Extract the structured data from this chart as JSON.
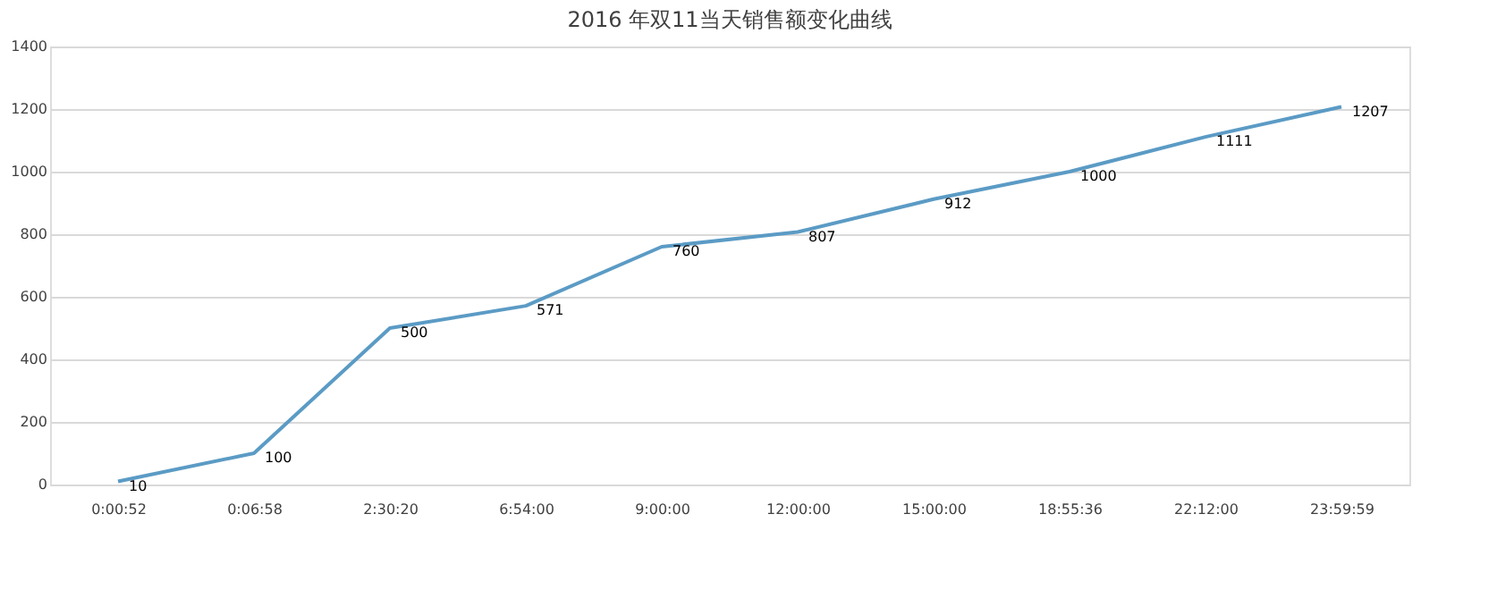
{
  "chart_data": {
    "type": "line",
    "title": "2016 年双11当天销售额变化曲线",
    "categories": [
      "0:00:52",
      "0:06:58",
      "2:30:20",
      "6:54:00",
      "9:00:00",
      "12:00:00",
      "15:00:00",
      "18:55:36",
      "22:12:00",
      "23:59:59"
    ],
    "series": [
      {
        "color": "#5b9bc5",
        "values": [
          10,
          100,
          500,
          571,
          760,
          807,
          912,
          1000,
          1111,
          1207
        ]
      }
    ],
    "ylim": [
      0,
      1400
    ],
    "yticks": [
      0,
      200,
      400,
      600,
      800,
      1000,
      1200,
      1400
    ],
    "grid": "y",
    "legend": false,
    "marker": "none",
    "line_style": "solid",
    "data_labels": true
  }
}
